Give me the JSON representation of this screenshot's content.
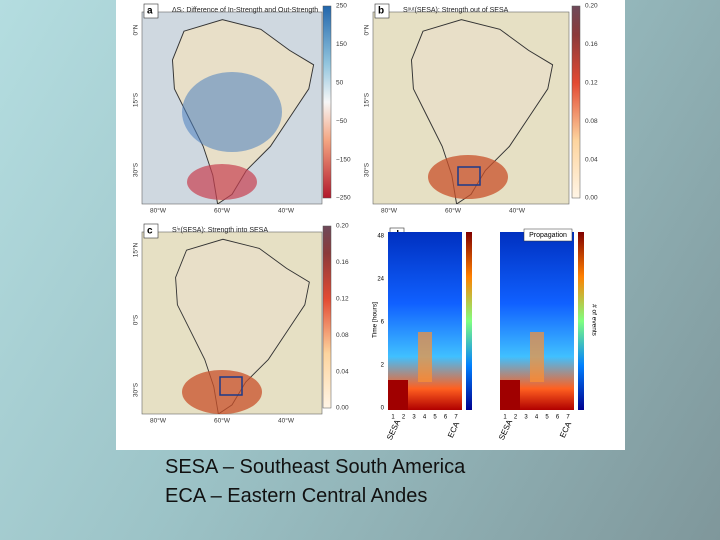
{
  "figure": {
    "panels": [
      {
        "label": "a",
        "title": "ΔSᵢ: Difference of In-Strength and Out-Strength",
        "colorbar_ticks": [
          "250",
          "150",
          "50",
          "−50",
          "−150",
          "−250"
        ],
        "lat_labels": [
          "0°N",
          "15°S",
          "30°S"
        ],
        "lon_labels": [
          "80°W",
          "60°W",
          "40°W"
        ]
      },
      {
        "label": "b",
        "title": "Sᵒᵘᵗ(SESA): Strength out of SESA",
        "colorbar_ticks": [
          "0.20",
          "0.16",
          "0.12",
          "0.08",
          "0.04",
          "0.00"
        ],
        "lat_labels": [
          "0°N",
          "15°S",
          "30°S"
        ],
        "lon_labels": [
          "80°W",
          "60°W",
          "40°W"
        ]
      },
      {
        "label": "c",
        "title": "Sⁱⁿ(SESA): Strength into SESA",
        "colorbar_ticks": [
          "0.20",
          "0.16",
          "0.12",
          "0.08",
          "0.04",
          "0.00"
        ],
        "lat_labels": [
          "15°N",
          "0°S",
          "30°S"
        ],
        "lon_labels": [
          "80°W",
          "60°W",
          "40°W"
        ]
      },
      {
        "label": "d",
        "legend": "Propagation",
        "y_label": "Time [hours]",
        "colorbar_label": "# of events",
        "y_ticks": [
          "0",
          "2",
          "6",
          "24",
          "48"
        ],
        "x_ticks": [
          "1",
          "2",
          "3",
          "4",
          "5",
          "6",
          "7"
        ],
        "x_labels": [
          "SESA",
          "ECA"
        ]
      }
    ]
  },
  "caption": [
    "SESA – Southeast South America",
    "ECA – Eastern Central Andes"
  ]
}
